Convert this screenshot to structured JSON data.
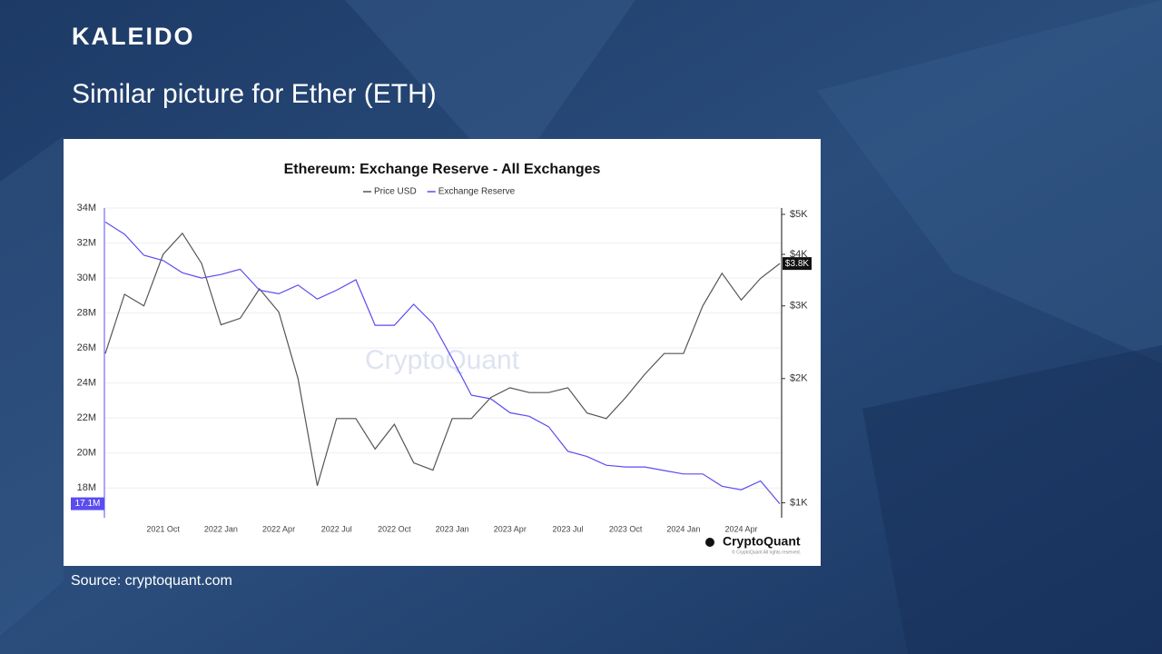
{
  "slide": {
    "brand": "KALEIDO",
    "title": "Similar picture for Ether (ETH)",
    "source": "Source: cryptoquant.com"
  },
  "chart_data": {
    "type": "line",
    "title": "Ethereum: Exchange Reserve - All Exchanges",
    "watermark": "CryptoQuant",
    "logo": "CryptoQuant",
    "copyright": "© CryptoQuant All rights reserved.",
    "categories": [
      null,
      null,
      null,
      "2021 Oct",
      null,
      null,
      "2022 Jan",
      null,
      null,
      "2022 Apr",
      null,
      null,
      "2022 Jul",
      null,
      null,
      "2022 Oct",
      null,
      null,
      "2023 Jan",
      null,
      null,
      "2023 Apr",
      null,
      null,
      "2023 Jul",
      null,
      null,
      "2023 Oct",
      null,
      null,
      "2024 Jan",
      null,
      null,
      "2024 Apr",
      null,
      null
    ],
    "series": [
      {
        "name": "Price USD",
        "color": "#555555",
        "axis": "y2",
        "values": [
          2300,
          3200,
          3000,
          4000,
          4500,
          3800,
          2700,
          2800,
          3300,
          2900,
          2000,
          1100,
          1600,
          1600,
          1350,
          1550,
          1250,
          1200,
          1600,
          1600,
          1800,
          1900,
          1850,
          1850,
          1900,
          1650,
          1600,
          1800,
          2050,
          2300,
          2300,
          3000,
          3600,
          3100,
          3500,
          3800
        ],
        "value_labels": [
          null,
          null,
          null,
          null,
          null,
          null,
          null,
          null,
          null,
          null,
          null,
          null,
          null,
          null,
          null,
          null,
          null,
          null,
          null,
          null,
          null,
          null,
          null,
          null,
          null,
          null,
          null,
          null,
          null,
          null,
          null,
          null,
          null,
          null,
          null,
          "$3.8K"
        ]
      },
      {
        "name": "Exchange Reserve",
        "color": "#5b4cf0",
        "values": [
          33.2,
          32.5,
          31.3,
          31.0,
          30.3,
          30.0,
          30.2,
          30.5,
          29.3,
          29.1,
          29.6,
          28.8,
          29.3,
          29.9,
          27.3,
          27.3,
          28.5,
          27.4,
          25.4,
          23.3,
          23.1,
          22.3,
          22.1,
          21.5,
          20.1,
          19.8,
          19.3,
          19.2,
          19.2,
          19.0,
          18.8,
          18.8,
          18.1,
          17.9,
          18.4,
          17.1
        ],
        "value_labels": [
          null,
          null,
          null,
          null,
          null,
          null,
          null,
          null,
          null,
          null,
          null,
          null,
          null,
          null,
          null,
          null,
          null,
          null,
          null,
          null,
          null,
          null,
          null,
          null,
          null,
          null,
          null,
          null,
          null,
          null,
          null,
          null,
          null,
          null,
          null,
          "17.1M"
        ]
      }
    ],
    "ylim": [
      16.3,
      34
    ],
    "yticks": [
      {
        "value": 18,
        "label": "18M"
      },
      {
        "value": 20,
        "label": "20M"
      },
      {
        "value": 22,
        "label": "22M"
      },
      {
        "value": 24,
        "label": "24M"
      },
      {
        "value": 26,
        "label": "26M"
      },
      {
        "value": 28,
        "label": "28M"
      },
      {
        "value": 30,
        "label": "30M"
      },
      {
        "value": 32,
        "label": "32M"
      },
      {
        "value": 34,
        "label": "34M"
      }
    ],
    "y2lim": [
      920,
      5180
    ],
    "y2log": true,
    "y2ticks": [
      {
        "value": 1000,
        "label": "$1K"
      },
      {
        "value": 2000,
        "label": "$2K"
      },
      {
        "value": 3000,
        "label": "$3K"
      },
      {
        "value": 4000,
        "label": "$4K"
      },
      {
        "value": 5000,
        "label": "$5K"
      }
    ],
    "grid": true,
    "legend": "top"
  }
}
